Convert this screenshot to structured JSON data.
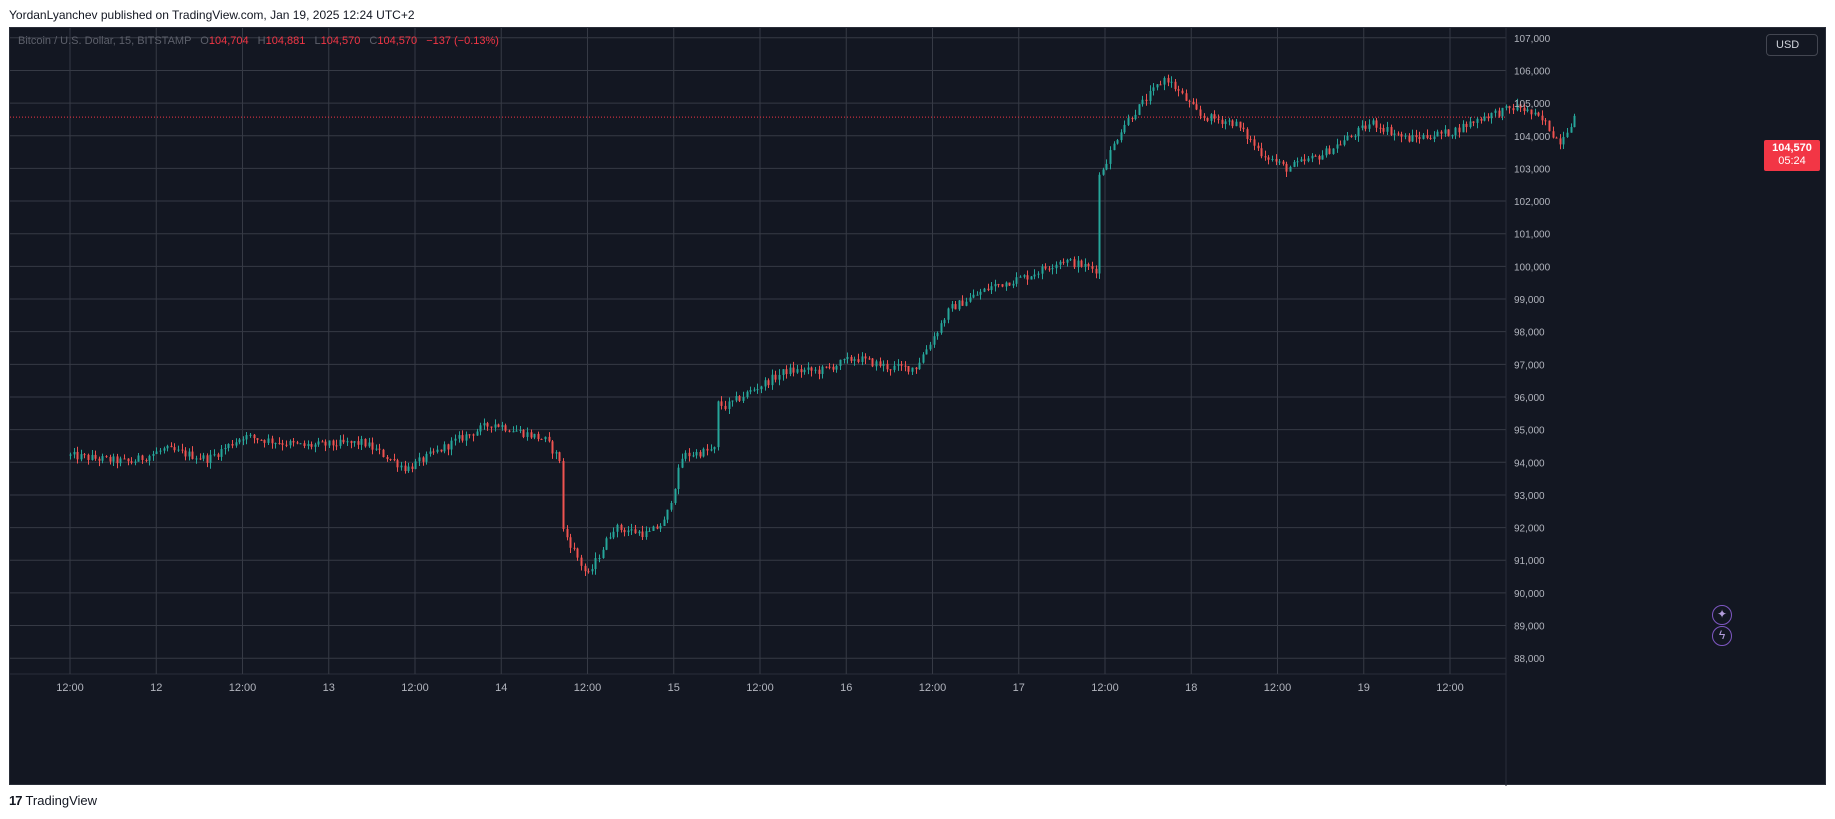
{
  "caption": "YordanLyanchev published on TradingView.com, Jan 19, 2025 12:24 UTC+2",
  "legend": {
    "symbol": "Bitcoin / U.S. Dollar, 15, BITSTAMP",
    "o_label": "O",
    "o_value": "104,704",
    "h_label": "H",
    "h_value": "104,881",
    "l_label": "L",
    "l_value": "104,570",
    "c_label": "C",
    "c_value": "104,570",
    "change": "−137 (−0.13%)"
  },
  "currency_button": "USD",
  "last_price": {
    "price": "104,570",
    "countdown": "05:24"
  },
  "icons": {
    "top": "sparkle-icon",
    "bottom": "lightning-icon"
  },
  "footer": {
    "mark": "17",
    "name": "TradingView"
  },
  "colors": {
    "background": "#131722",
    "grid": "#363a45",
    "up": "#26a69a",
    "down": "#ef5350",
    "price_line": "#f23645",
    "axis_text": "#b2b5be"
  },
  "chart_data": {
    "type": "candlestick",
    "title": "",
    "xlabel": "",
    "ylabel": "",
    "ylim": [
      87700,
      107300
    ],
    "y_ticks": [
      "88,000",
      "89,000",
      "90,000",
      "91,000",
      "92,000",
      "93,000",
      "94,000",
      "95,000",
      "96,000",
      "97,000",
      "98,000",
      "99,000",
      "100,000",
      "101,000",
      "102,000",
      "103,000",
      "104,000",
      "105,000",
      "106,000",
      "107,000"
    ],
    "x_ticks": [
      "12:00",
      "12",
      "12:00",
      "13",
      "12:00",
      "14",
      "12:00",
      "15",
      "12:00",
      "16",
      "12:00",
      "17",
      "12:00",
      "18",
      "12:00",
      "19",
      "12:00"
    ],
    "last_price": 104570,
    "grid": true,
    "close_path": [
      [
        "11",
        0.0,
        94200
      ],
      [
        "11",
        0.35,
        94000
      ],
      [
        "11",
        0.55,
        94400
      ],
      [
        "11",
        0.8,
        94100
      ],
      [
        "12",
        0.0,
        94800
      ],
      [
        "12",
        0.35,
        94500
      ],
      [
        "12",
        0.7,
        94600
      ],
      [
        "12",
        0.95,
        93800
      ],
      [
        "12",
        1.25,
        94700
      ],
      [
        "12",
        1.45,
        95200
      ],
      [
        "12",
        1.75,
        94700
      ],
      [
        "12",
        1.85,
        94000
      ],
      [
        "13",
        0.0,
        95300
      ],
      [
        "13",
        0.2,
        94300
      ],
      [
        "13",
        0.4,
        94400
      ],
      [
        "13",
        0.5,
        93500
      ],
      [
        "13",
        0.8,
        92500
      ],
      [
        "13",
        0.9,
        91500
      ],
      [
        "13",
        1.0,
        90500
      ],
      [
        "13",
        1.15,
        92000
      ],
      [
        "13",
        1.35,
        91800
      ],
      [
        "13",
        1.45,
        92200
      ],
      [
        "13",
        1.55,
        94200
      ],
      [
        "13",
        1.75,
        94400
      ],
      [
        "14",
        0.0,
        94900
      ],
      [
        "14",
        0.35,
        94900
      ],
      [
        "14",
        0.5,
        96400
      ],
      [
        "14",
        0.65,
        96000
      ],
      [
        "14",
        0.8,
        95700
      ],
      [
        "14",
        0.95,
        96200
      ],
      [
        "14",
        1.15,
        96800
      ],
      [
        "14",
        1.35,
        96800
      ],
      [
        "14",
        1.55,
        97200
      ],
      [
        "14",
        1.75,
        96900
      ],
      [
        "14",
        1.9,
        96900
      ],
      [
        "14",
        2.1,
        98700
      ],
      [
        "14",
        2.35,
        99400
      ],
      [
        "14",
        2.55,
        99700
      ],
      [
        "14",
        2.75,
        100200
      ],
      [
        "14",
        2.95,
        99900
      ],
      [
        "15",
        0.0,
        99300
      ],
      [
        "15",
        0.2,
        99600
      ],
      [
        "15",
        0.4,
        99000
      ],
      [
        "15",
        0.55,
        98200
      ],
      [
        "15",
        0.7,
        99600
      ],
      [
        "15",
        0.85,
        100200
      ],
      [
        "15",
        1.05,
        99900
      ],
      [
        "15",
        1.25,
        100200
      ],
      [
        "15",
        1.45,
        101200
      ],
      [
        "15",
        1.75,
        101800
      ],
      [
        "15",
        1.95,
        102600
      ],
      [
        "15",
        2.1,
        104300
      ],
      [
        "15",
        2.35,
        105800
      ],
      [
        "15",
        2.55,
        104600
      ],
      [
        "15",
        2.75,
        104400
      ],
      [
        "15",
        2.9,
        103500
      ],
      [
        "15",
        3.05,
        103000
      ],
      [
        "15",
        3.25,
        103400
      ],
      [
        "15",
        3.55,
        104400
      ],
      [
        "15",
        3.75,
        103900
      ],
      [
        "15",
        4.0,
        104100
      ],
      [
        "15",
        4.2,
        104600
      ],
      [
        "15",
        4.4,
        104900
      ],
      [
        "15",
        4.55,
        104400
      ],
      [
        "15",
        4.63,
        103800
      ],
      [
        "15",
        4.72,
        104570
      ]
    ]
  }
}
